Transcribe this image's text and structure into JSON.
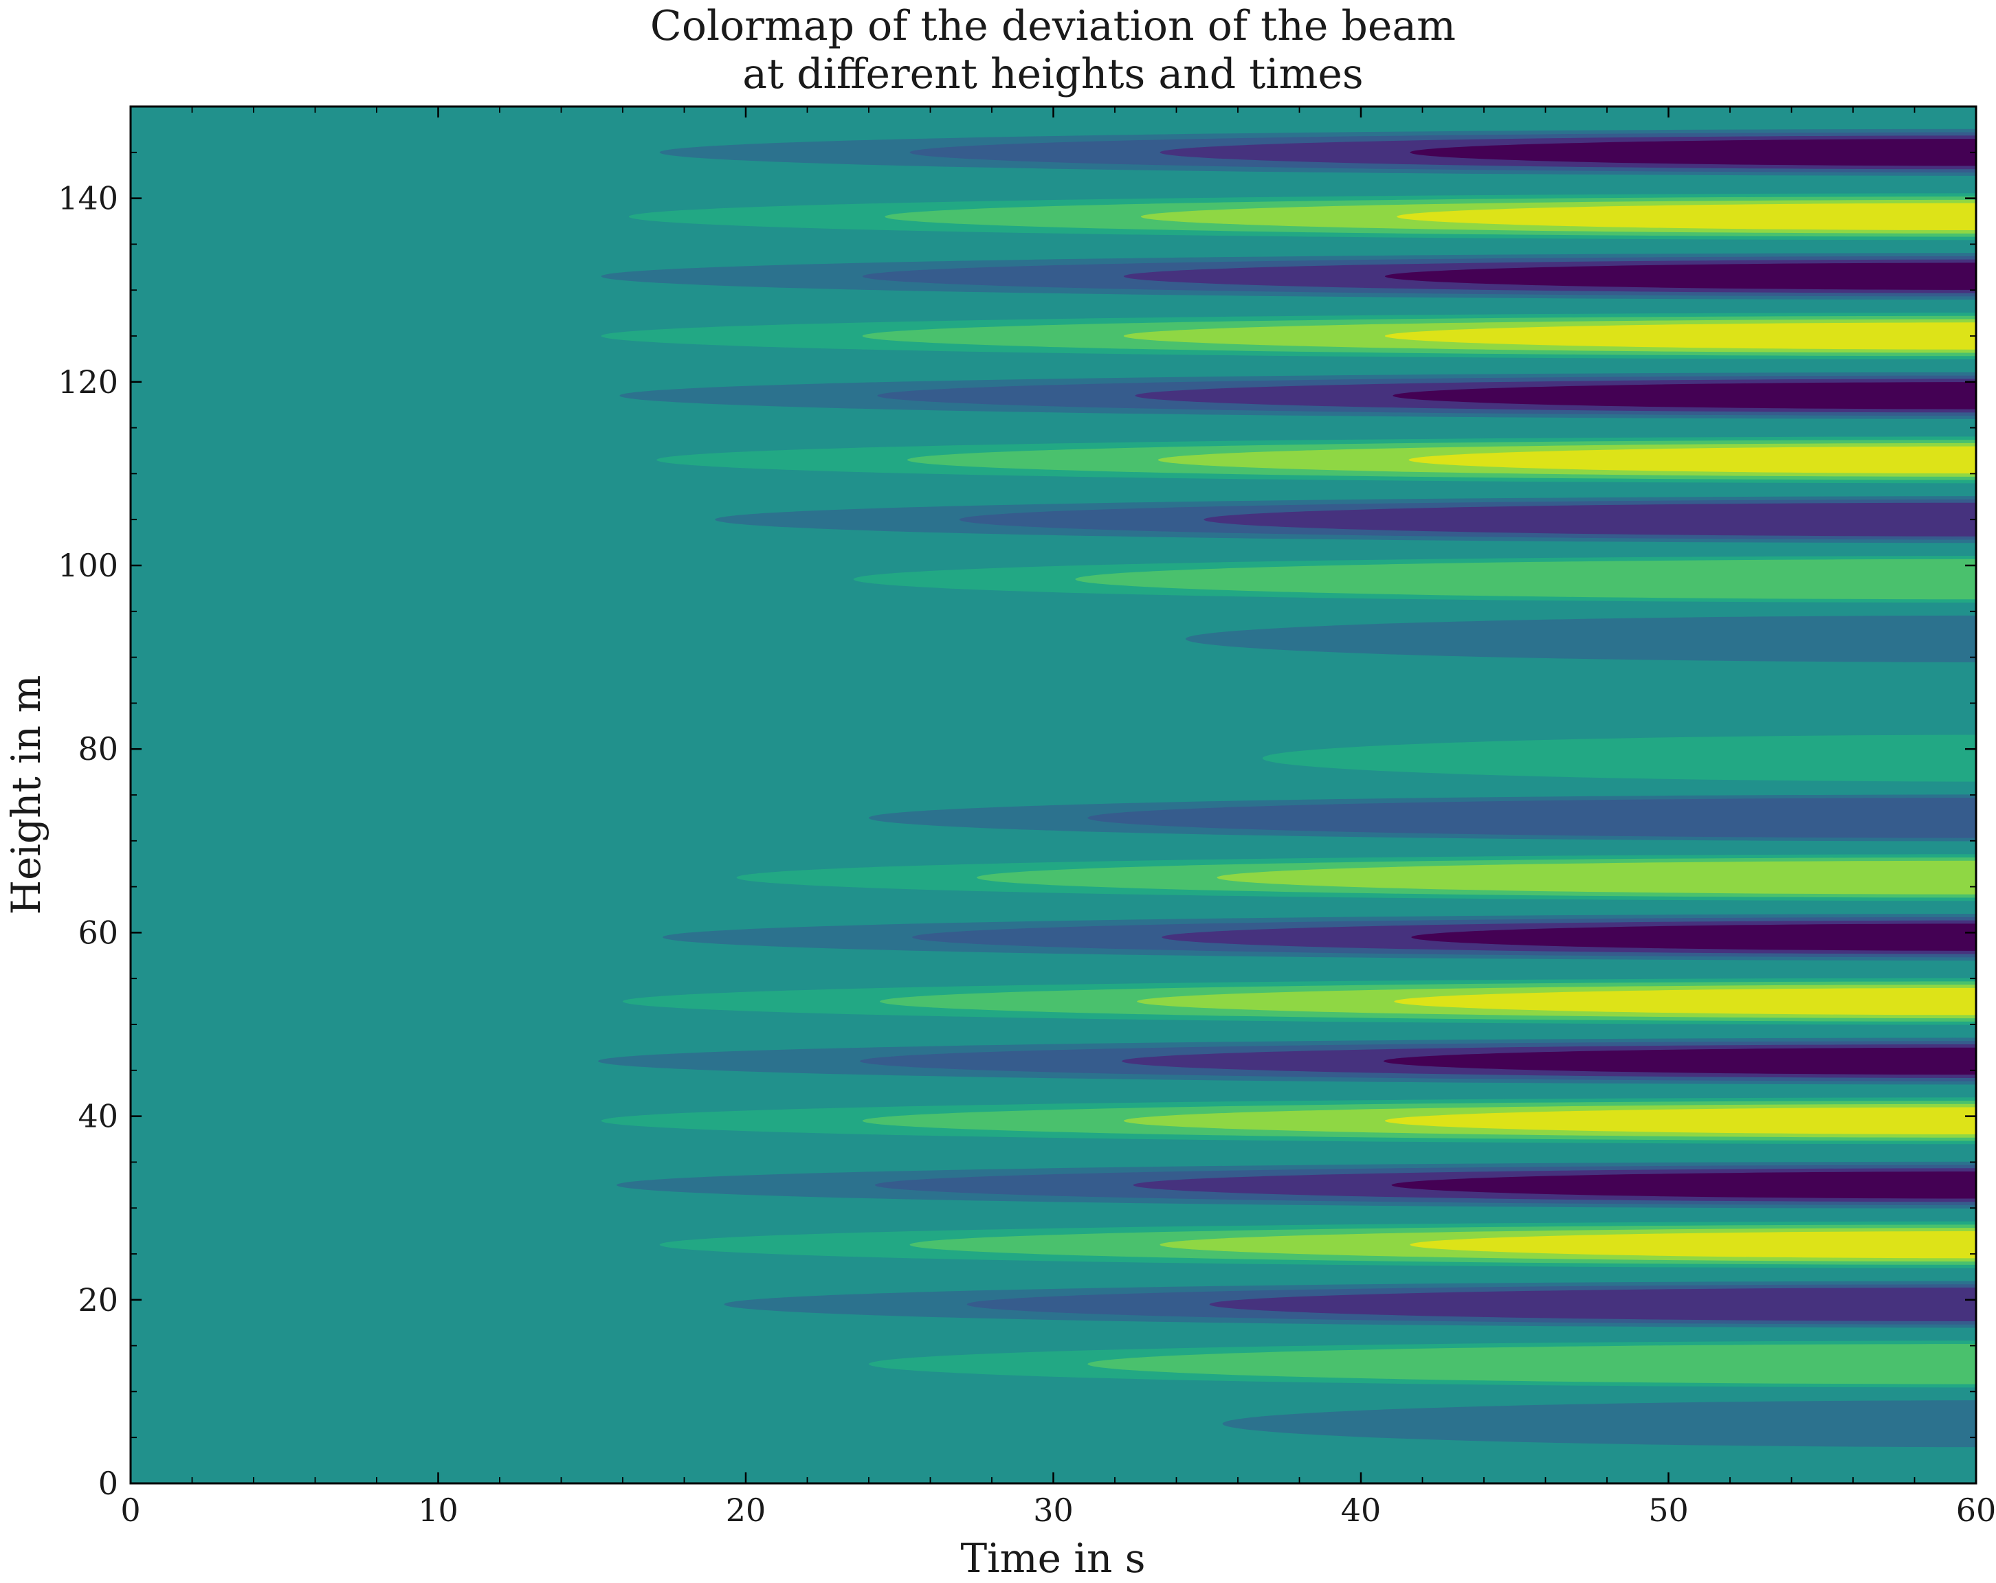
{
  "chart_data": {
    "type": "heatmap",
    "subtype": "filled-contour",
    "title_lines": [
      "Colormap of the deviation of the beam",
      "at different heights and times"
    ],
    "xlabel": "Time in s",
    "ylabel": "Height in m",
    "xlim": [
      0,
      60
    ],
    "ylim": [
      0,
      150
    ],
    "xticks": [
      "0",
      "10",
      "20",
      "30",
      "40",
      "50",
      "60"
    ],
    "yticks": [
      "0",
      "20",
      "40",
      "60",
      "80",
      "100",
      "120",
      "140"
    ],
    "colormap": "viridis",
    "levels": 9,
    "background_color": "#21918c",
    "level_colors": {
      "neg4": "#440154",
      "neg3": "#46327e",
      "neg2": "#365c8d",
      "neg1": "#2c728e",
      "pos1": "#22a884",
      "pos2": "#4ac16d",
      "pos3": "#8fd744",
      "pos4": "#dde318"
    },
    "bands": [
      {
        "height": 6.5,
        "sign": "neg",
        "peak_level": 1,
        "onset_time": 35.5
      },
      {
        "height": 13,
        "sign": "pos",
        "peak_level": 2,
        "onset_time": 24
      },
      {
        "height": 19.5,
        "sign": "neg",
        "peak_level": 3,
        "onset_time": 19.3
      },
      {
        "height": 26,
        "sign": "pos",
        "peak_level": 4,
        "onset_time": 17.2
      },
      {
        "height": 32.5,
        "sign": "neg",
        "peak_level": 4,
        "onset_time": 15.8
      },
      {
        "height": 39.5,
        "sign": "pos",
        "peak_level": 4,
        "onset_time": 15.3
      },
      {
        "height": 46,
        "sign": "neg",
        "peak_level": 4,
        "onset_time": 15.2
      },
      {
        "height": 52.5,
        "sign": "pos",
        "peak_level": 4,
        "onset_time": 16
      },
      {
        "height": 59.5,
        "sign": "neg",
        "peak_level": 4,
        "onset_time": 17.3
      },
      {
        "height": 66,
        "sign": "pos",
        "peak_level": 3,
        "onset_time": 19.7
      },
      {
        "height": 72.5,
        "sign": "neg",
        "peak_level": 2,
        "onset_time": 24
      },
      {
        "height": 79,
        "sign": "pos",
        "peak_level": 1,
        "onset_time": 36.8
      },
      {
        "height": 92,
        "sign": "neg",
        "peak_level": 1,
        "onset_time": 34.3
      },
      {
        "height": 98.5,
        "sign": "pos",
        "peak_level": 2,
        "onset_time": 23.5
      },
      {
        "height": 105,
        "sign": "neg",
        "peak_level": 3,
        "onset_time": 19
      },
      {
        "height": 111.5,
        "sign": "pos",
        "peak_level": 4,
        "onset_time": 17.1
      },
      {
        "height": 118.5,
        "sign": "neg",
        "peak_level": 4,
        "onset_time": 15.9
      },
      {
        "height": 125,
        "sign": "pos",
        "peak_level": 4,
        "onset_time": 15.3
      },
      {
        "height": 131.5,
        "sign": "neg",
        "peak_level": 4,
        "onset_time": 15.3
      },
      {
        "height": 138,
        "sign": "pos",
        "peak_level": 4,
        "onset_time": 16.2
      },
      {
        "height": 145,
        "sign": "neg",
        "peak_level": 4,
        "onset_time": 17.2
      }
    ]
  }
}
